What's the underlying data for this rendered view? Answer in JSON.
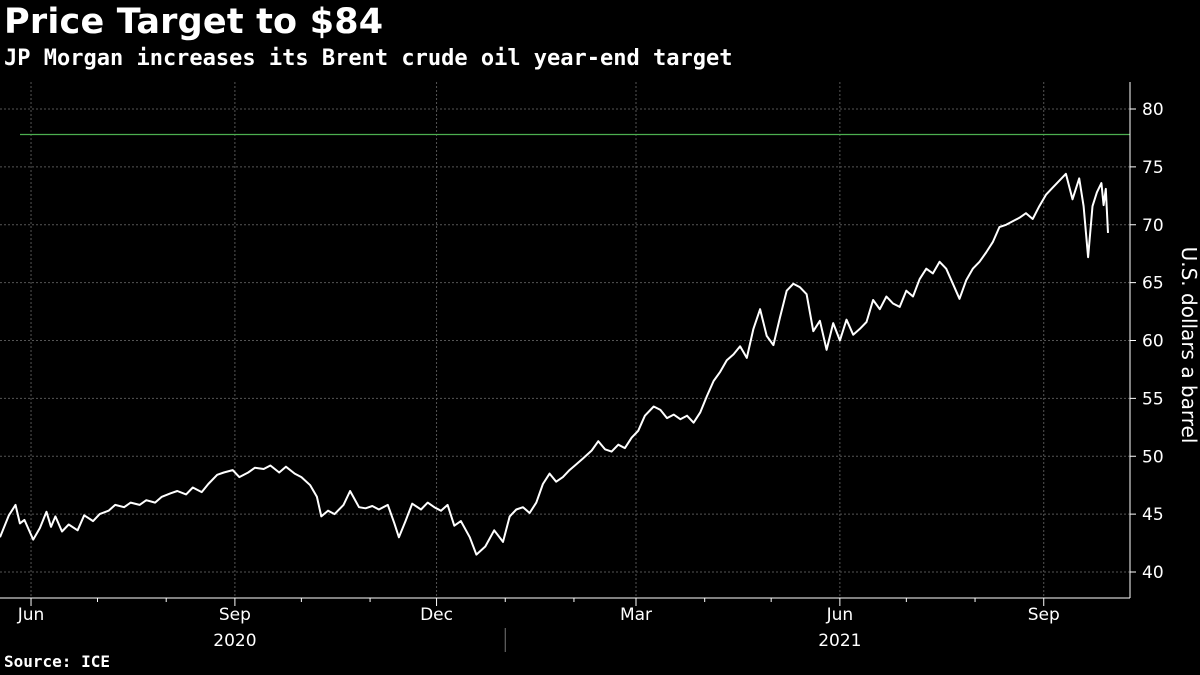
{
  "title": "Price Target to $84",
  "subtitle": "JP Morgan increases its Brent crude oil year-end target",
  "source": "Source: ICE",
  "chart_data": {
    "type": "line",
    "title": "Price Target to $84",
    "subtitle": "JP Morgan increases its Brent crude oil year-end target",
    "xlabel": "",
    "ylabel": "U.S. dollars a barrel",
    "ylim": [
      38,
      82
    ],
    "yticks": [
      40,
      45,
      50,
      55,
      60,
      65,
      70,
      75,
      80
    ],
    "xlim": [
      "2020-05-18",
      "2021-09-30"
    ],
    "xticks": [
      {
        "label": "Jun",
        "date": "2020-06-01"
      },
      {
        "label": "Sep",
        "date": "2020-09-01"
      },
      {
        "label": "Dec",
        "date": "2020-12-01"
      },
      {
        "label": "Mar",
        "date": "2021-03-01"
      },
      {
        "label": "Jun",
        "date": "2021-06-01"
      },
      {
        "label": "Sep",
        "date": "2021-09-01"
      }
    ],
    "minor_xticks": [
      "2020-07-01",
      "2020-08-01",
      "2020-10-01",
      "2020-11-01",
      "2021-01-01",
      "2021-02-01",
      "2021-04-01",
      "2021-05-01",
      "2021-07-01",
      "2021-08-01"
    ],
    "year_labels": [
      {
        "label": "2020",
        "date": "2020-09-01"
      },
      {
        "label": "2021",
        "date": "2021-06-01"
      }
    ],
    "year_divider": "2021-01-01",
    "grid": true,
    "colors": {
      "line": "#ffffff",
      "target_line": "#4caf50",
      "grid": "#555555",
      "background": "#000000"
    },
    "reference_line": {
      "value": 77.8
    },
    "series": [
      {
        "points": [
          [
            "2020-05-18",
            43.0
          ],
          [
            "2020-05-22",
            44.9
          ],
          [
            "2020-05-25",
            45.8
          ],
          [
            "2020-05-27",
            44.2
          ],
          [
            "2020-05-29",
            44.5
          ],
          [
            "2020-06-02",
            42.8
          ],
          [
            "2020-06-05",
            43.8
          ],
          [
            "2020-06-08",
            45.2
          ],
          [
            "2020-06-10",
            43.9
          ],
          [
            "2020-06-12",
            44.8
          ],
          [
            "2020-06-15",
            43.5
          ],
          [
            "2020-06-18",
            44.1
          ],
          [
            "2020-06-22",
            43.6
          ],
          [
            "2020-06-25",
            44.9
          ],
          [
            "2020-06-29",
            44.4
          ],
          [
            "2020-07-02",
            45.0
          ],
          [
            "2020-07-06",
            45.3
          ],
          [
            "2020-07-09",
            45.8
          ],
          [
            "2020-07-13",
            45.6
          ],
          [
            "2020-07-16",
            46.0
          ],
          [
            "2020-07-20",
            45.8
          ],
          [
            "2020-07-23",
            46.2
          ],
          [
            "2020-07-27",
            46.0
          ],
          [
            "2020-07-30",
            46.5
          ],
          [
            "2020-08-03",
            46.8
          ],
          [
            "2020-08-06",
            47.0
          ],
          [
            "2020-08-10",
            46.7
          ],
          [
            "2020-08-13",
            47.3
          ],
          [
            "2020-08-17",
            46.9
          ],
          [
            "2020-08-20",
            47.6
          ],
          [
            "2020-08-24",
            48.4
          ],
          [
            "2020-08-27",
            48.6
          ],
          [
            "2020-08-31",
            48.8
          ],
          [
            "2020-09-03",
            48.2
          ],
          [
            "2020-09-07",
            48.6
          ],
          [
            "2020-09-10",
            49.0
          ],
          [
            "2020-09-14",
            48.9
          ],
          [
            "2020-09-17",
            49.2
          ],
          [
            "2020-09-21",
            48.6
          ],
          [
            "2020-09-24",
            49.1
          ],
          [
            "2020-09-28",
            48.5
          ],
          [
            "2020-10-01",
            48.2
          ],
          [
            "2020-10-05",
            47.5
          ],
          [
            "2020-10-08",
            46.5
          ],
          [
            "2020-10-10",
            44.8
          ],
          [
            "2020-10-13",
            45.3
          ],
          [
            "2020-10-16",
            45.0
          ],
          [
            "2020-10-20",
            45.8
          ],
          [
            "2020-10-23",
            47.0
          ],
          [
            "2020-10-27",
            45.6
          ],
          [
            "2020-10-30",
            45.5
          ],
          [
            "2020-11-02",
            45.7
          ],
          [
            "2020-11-05",
            45.4
          ],
          [
            "2020-11-09",
            45.8
          ],
          [
            "2020-11-12",
            44.2
          ],
          [
            "2020-11-14",
            43.0
          ],
          [
            "2020-11-17",
            44.4
          ],
          [
            "2020-11-20",
            45.9
          ],
          [
            "2020-11-24",
            45.4
          ],
          [
            "2020-11-27",
            46.0
          ],
          [
            "2020-11-30",
            45.6
          ],
          [
            "2020-12-03",
            45.3
          ],
          [
            "2020-12-06",
            45.8
          ],
          [
            "2020-12-09",
            44.0
          ],
          [
            "2020-12-12",
            44.4
          ],
          [
            "2020-12-16",
            43.0
          ],
          [
            "2020-12-19",
            41.5
          ],
          [
            "2020-12-23",
            42.2
          ],
          [
            "2020-12-27",
            43.6
          ],
          [
            "2020-12-31",
            42.6
          ],
          [
            "2021-01-03",
            44.8
          ],
          [
            "2021-01-06",
            45.4
          ],
          [
            "2021-01-09",
            45.6
          ],
          [
            "2021-01-12",
            45.1
          ],
          [
            "2021-01-15",
            46.0
          ],
          [
            "2021-01-18",
            47.6
          ],
          [
            "2021-01-21",
            48.5
          ],
          [
            "2021-01-24",
            47.8
          ],
          [
            "2021-01-27",
            48.2
          ],
          [
            "2021-01-30",
            48.8
          ],
          [
            "2021-02-02",
            49.3
          ],
          [
            "2021-02-05",
            49.8
          ],
          [
            "2021-02-09",
            50.5
          ],
          [
            "2021-02-12",
            51.3
          ],
          [
            "2021-02-15",
            50.6
          ],
          [
            "2021-02-18",
            50.4
          ],
          [
            "2021-02-21",
            51.0
          ],
          [
            "2021-02-24",
            50.7
          ],
          [
            "2021-02-27",
            51.6
          ],
          [
            "2021-03-02",
            52.2
          ],
          [
            "2021-03-05",
            53.5
          ],
          [
            "2021-03-09",
            54.3
          ],
          [
            "2021-03-12",
            54.0
          ],
          [
            "2021-03-15",
            53.3
          ],
          [
            "2021-03-18",
            53.6
          ],
          [
            "2021-03-21",
            53.2
          ],
          [
            "2021-03-24",
            53.5
          ],
          [
            "2021-03-27",
            52.9
          ],
          [
            "2021-03-30",
            53.8
          ],
          [
            "2021-04-02",
            55.2
          ],
          [
            "2021-04-05",
            56.5
          ],
          [
            "2021-04-08",
            57.3
          ],
          [
            "2021-04-11",
            58.3
          ],
          [
            "2021-04-14",
            58.8
          ],
          [
            "2021-04-17",
            59.5
          ],
          [
            "2021-04-20",
            58.5
          ],
          [
            "2021-04-23",
            61.0
          ],
          [
            "2021-04-26",
            62.7
          ],
          [
            "2021-04-29",
            60.4
          ],
          [
            "2021-05-02",
            59.6
          ],
          [
            "2021-05-05",
            62.0
          ],
          [
            "2021-05-08",
            64.3
          ],
          [
            "2021-05-11",
            64.9
          ],
          [
            "2021-05-14",
            64.6
          ],
          [
            "2021-05-17",
            64.0
          ],
          [
            "2021-05-20",
            60.8
          ],
          [
            "2021-05-23",
            61.7
          ],
          [
            "2021-05-26",
            59.2
          ],
          [
            "2021-05-29",
            61.5
          ],
          [
            "2021-06-01",
            60.0
          ],
          [
            "2021-06-04",
            61.8
          ],
          [
            "2021-06-07",
            60.5
          ],
          [
            "2021-06-10",
            61.0
          ],
          [
            "2021-06-13",
            61.6
          ],
          [
            "2021-06-16",
            63.5
          ],
          [
            "2021-06-19",
            62.7
          ],
          [
            "2021-06-22",
            63.8
          ],
          [
            "2021-06-25",
            63.2
          ],
          [
            "2021-06-28",
            62.9
          ],
          [
            "2021-07-01",
            64.3
          ],
          [
            "2021-07-04",
            63.8
          ],
          [
            "2021-07-07",
            65.3
          ],
          [
            "2021-07-10",
            66.2
          ],
          [
            "2021-07-13",
            65.8
          ],
          [
            "2021-07-16",
            66.8
          ],
          [
            "2021-07-19",
            66.2
          ],
          [
            "2021-07-22",
            64.9
          ],
          [
            "2021-07-25",
            63.6
          ],
          [
            "2021-07-28",
            65.2
          ],
          [
            "2021-07-31",
            66.2
          ],
          [
            "2021-08-03",
            66.8
          ],
          [
            "2021-08-06",
            67.6
          ],
          [
            "2021-08-09",
            68.5
          ],
          [
            "2021-08-12",
            69.8
          ],
          [
            "2021-08-15",
            70.0
          ],
          [
            "2021-08-18",
            70.3
          ],
          [
            "2021-08-21",
            70.6
          ],
          [
            "2021-08-24",
            71.0
          ],
          [
            "2021-08-27",
            70.5
          ],
          [
            "2021-08-30",
            71.6
          ],
          [
            "2021-09-02",
            72.6
          ],
          [
            "2021-09-05",
            73.2
          ],
          [
            "2021-09-08",
            73.8
          ],
          [
            "2021-09-11",
            74.4
          ],
          [
            "2021-09-14",
            72.2
          ],
          [
            "2021-09-17",
            74.0
          ],
          [
            "2021-09-19",
            71.6
          ],
          [
            "2021-09-21",
            67.2
          ],
          [
            "2021-09-23",
            71.6
          ],
          [
            "2021-09-25",
            72.8
          ],
          [
            "2021-09-27",
            73.6
          ],
          [
            "2021-09-28",
            71.7
          ],
          [
            "2021-09-29",
            73.1
          ],
          [
            "2021-09-30",
            69.3
          ]
        ]
      }
    ]
  }
}
